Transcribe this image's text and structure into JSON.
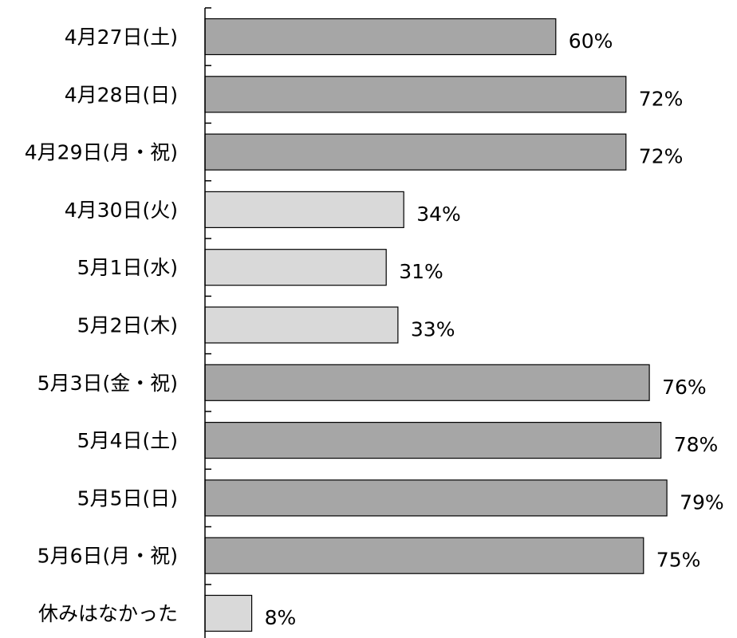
{
  "chart_data": {
    "type": "bar",
    "orientation": "horizontal",
    "categories": [
      "4月27日(土)",
      "4月28日(日)",
      "4月29日(月・祝)",
      "4月30日(火)",
      "5月1日(水)",
      "5月2日(木)",
      "5月3日(金・祝)",
      "5月4日(土)",
      "5月5日(日)",
      "5月6日(月・祝)",
      "休みはなかった"
    ],
    "values": [
      60,
      72,
      72,
      34,
      31,
      33,
      76,
      78,
      79,
      75,
      8
    ],
    "value_labels": [
      "60%",
      "72%",
      "72%",
      "34%",
      "31%",
      "33%",
      "76%",
      "78%",
      "79%",
      "75%",
      "8%"
    ],
    "bar_colors": [
      "#a6a6a6",
      "#a6a6a6",
      "#a6a6a6",
      "#d9d9d9",
      "#d9d9d9",
      "#d9d9d9",
      "#a6a6a6",
      "#a6a6a6",
      "#a6a6a6",
      "#a6a6a6",
      "#d9d9d9"
    ],
    "title": "",
    "xlabel": "",
    "ylabel": "",
    "xlim": [
      0,
      100
    ],
    "grid": false,
    "legend": "none"
  },
  "colors": {
    "holiday_bar": "#a6a6a6",
    "weekday_bar": "#d9d9d9",
    "outline": "#000000",
    "text": "#000000",
    "background": "#ffffff"
  }
}
